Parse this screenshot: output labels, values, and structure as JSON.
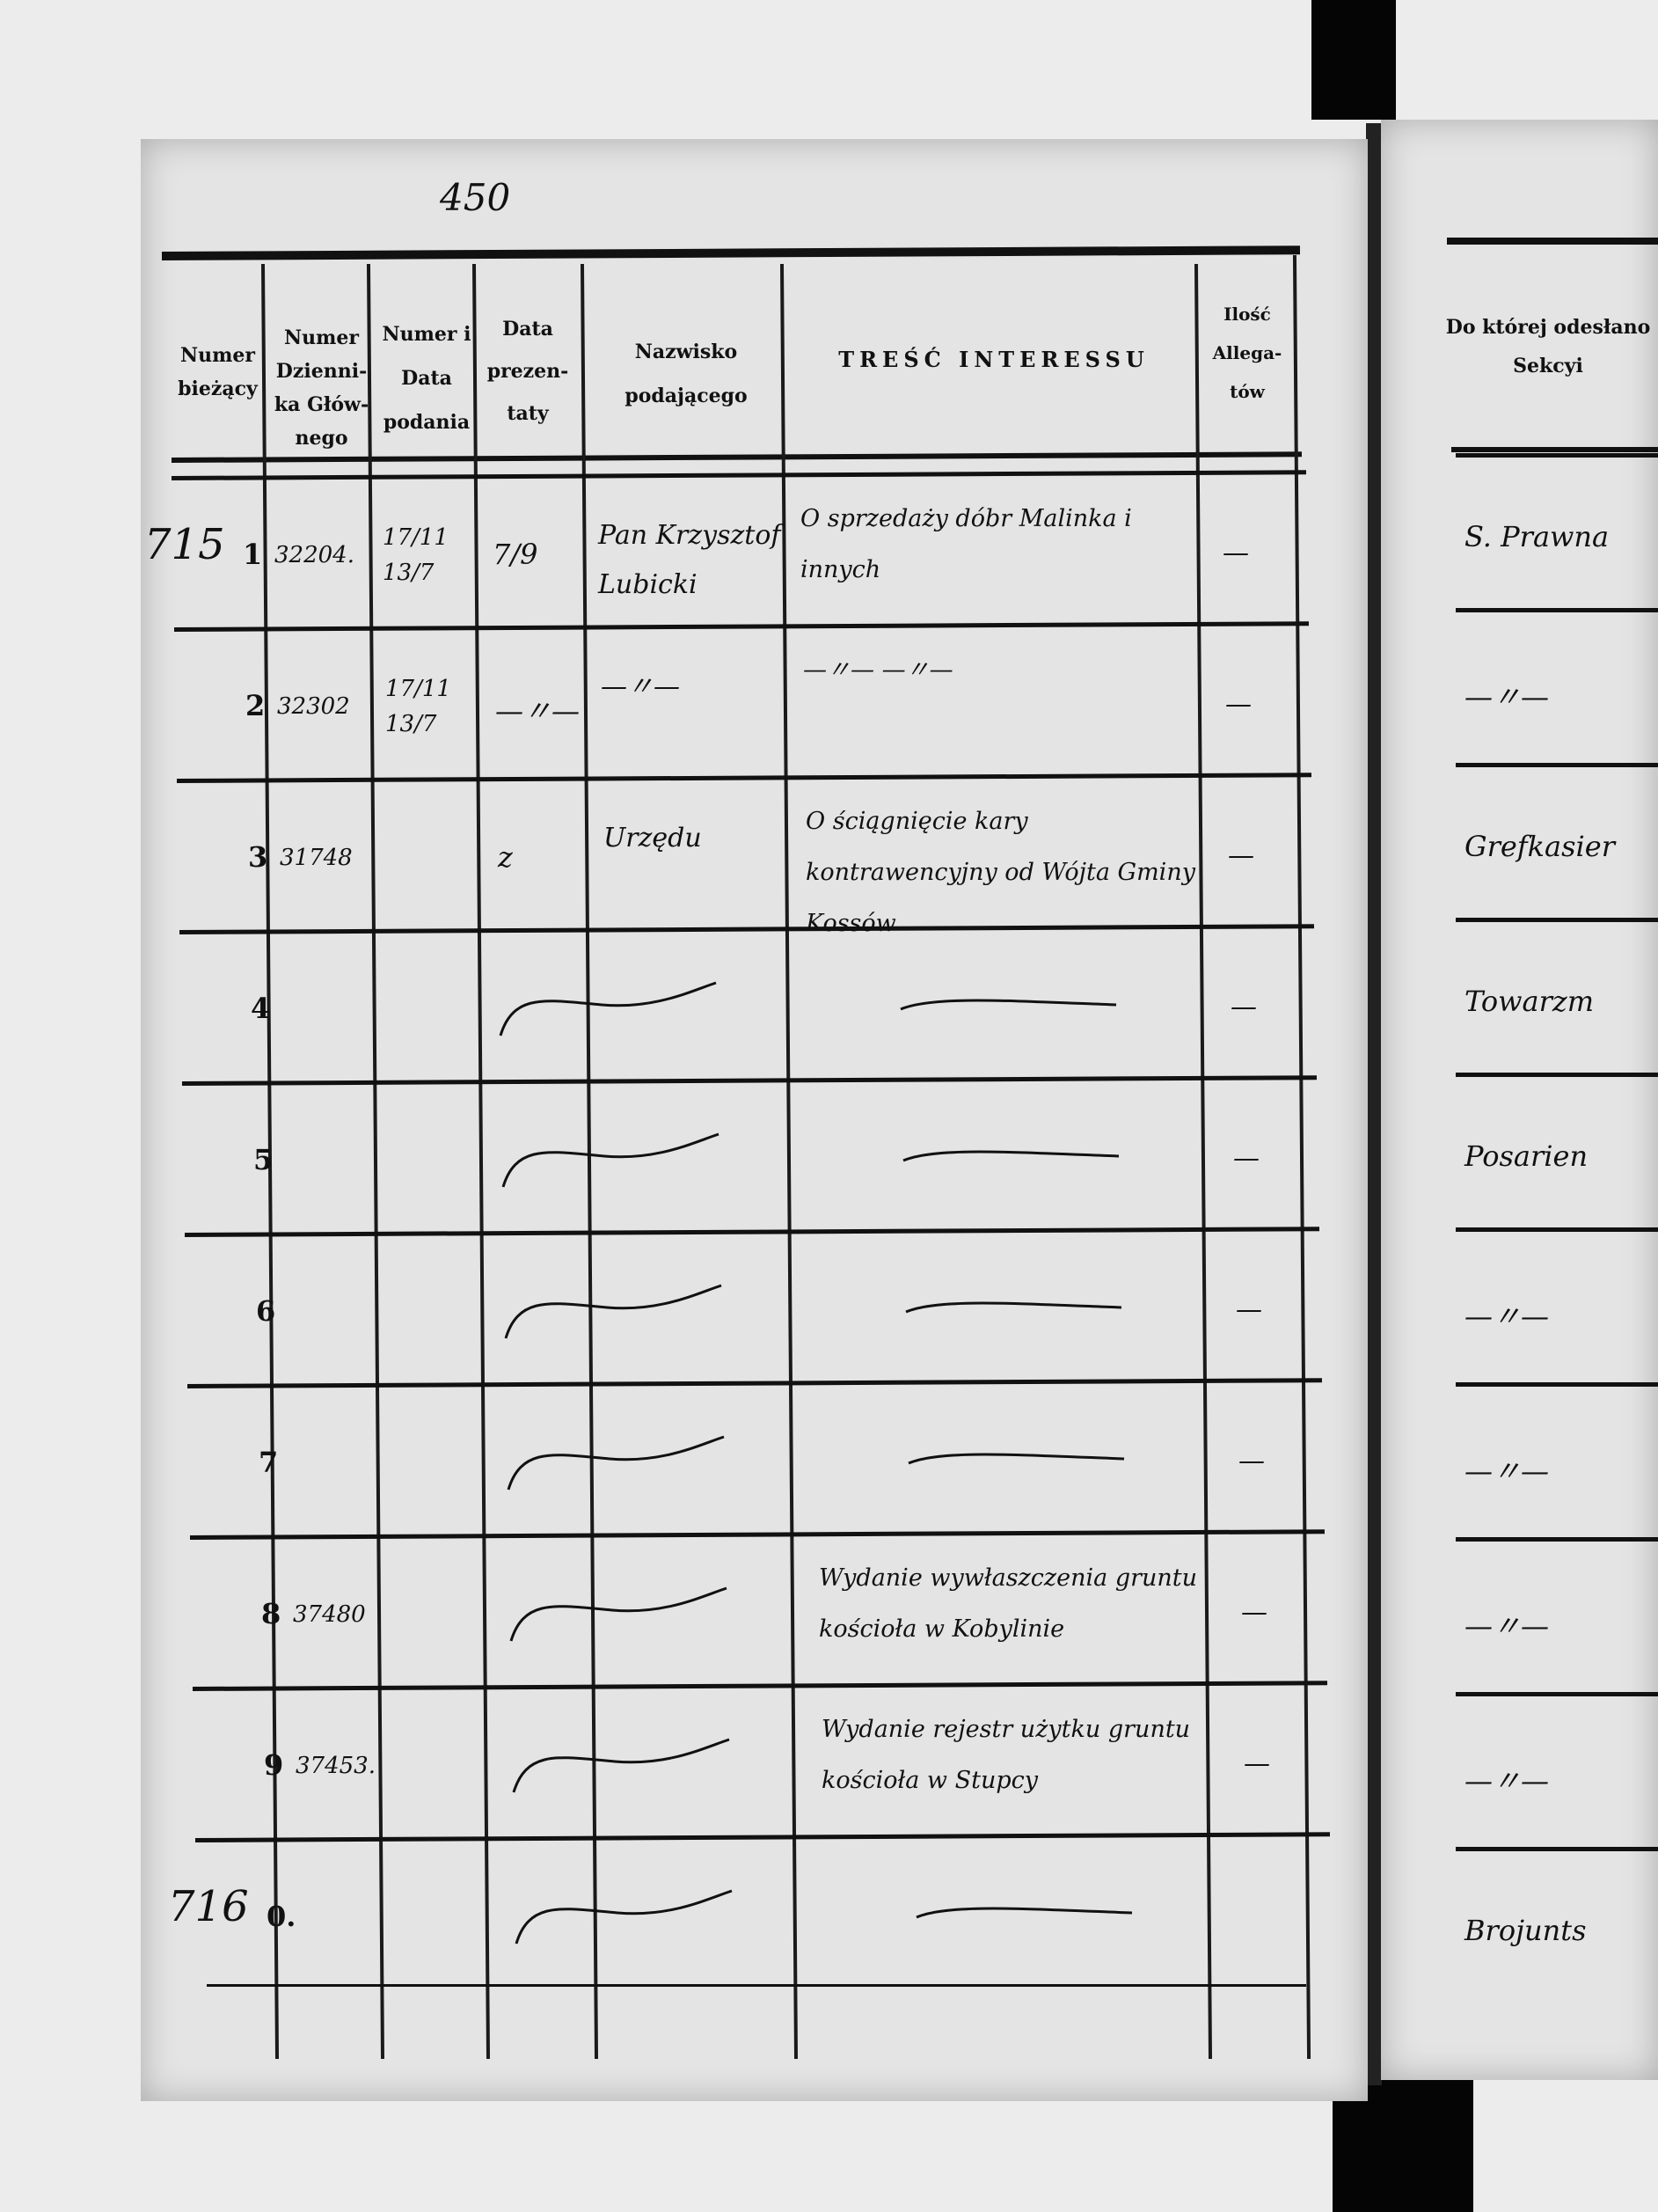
{
  "page_number": "450",
  "header": {
    "col_current_number": "Numer bieżący",
    "col_main_journal_number": "Numer Dzienni-ka Głów-nego",
    "col_number_and_date": "Numer i Data podania",
    "col_date_presented": "Data prezen-taty",
    "col_petitioner": "Nazwisko podającego",
    "col_content": "TREŚĆ INTERESSU",
    "col_attachments": "Ilość Allega-tów",
    "col_section": "Do której odesłano Sekcyi"
  },
  "rows": [
    {
      "margin": "715",
      "number": "1",
      "journal": "32204.",
      "number_date": "17/11 13/7",
      "date_presented": "7/9",
      "petitioner": "Pan Krzysztof Lubicki",
      "content": "O sprzedaży dóbr Malinka i innych",
      "attachments": "—",
      "section": "S. Prawna"
    },
    {
      "margin": "",
      "number": "2",
      "journal": "32302",
      "number_date": "17/11 13/7",
      "date_presented": "—〃—",
      "petitioner": "—〃—",
      "content": "—〃—   —〃—",
      "attachments": "—",
      "section": "—〃—"
    },
    {
      "margin": "",
      "number": "3",
      "journal": "31748",
      "number_date": "",
      "date_presented": "z",
      "petitioner": "Urzędu",
      "content": "O ściągnięcie kary kontrawencyjny od Wójta Gminy Kossów",
      "attachments": "—",
      "section": "Grefkasier"
    },
    {
      "margin": "",
      "number": "4",
      "journal": "",
      "number_date": "",
      "date_presented": "",
      "petitioner": "",
      "content": "",
      "attachments": "—",
      "section": "Towarzm"
    },
    {
      "margin": "",
      "number": "5",
      "journal": "",
      "number_date": "",
      "date_presented": "",
      "petitioner": "",
      "content": "",
      "attachments": "—",
      "section": "Posarien"
    },
    {
      "margin": "",
      "number": "6",
      "journal": "",
      "number_date": "",
      "date_presented": "",
      "petitioner": "",
      "content": "",
      "attachments": "—",
      "section": "—〃—"
    },
    {
      "margin": "",
      "number": "7",
      "journal": "",
      "number_date": "",
      "date_presented": "",
      "petitioner": "",
      "content": "",
      "attachments": "—",
      "section": "—〃—"
    },
    {
      "margin": "",
      "number": "8",
      "journal": "37480",
      "number_date": "",
      "date_presented": "",
      "petitioner": "",
      "content": "Wydanie wywłaszczenia gruntu kościoła w Kobylinie",
      "attachments": "—",
      "section": "—〃—"
    },
    {
      "margin": "",
      "number": "9",
      "journal": "37453.",
      "number_date": "",
      "date_presented": "",
      "petitioner": "",
      "content": "Wydanie rejestr użytku gruntu kościoła w Stupcy",
      "attachments": "—",
      "section": "—〃—"
    },
    {
      "margin": "716",
      "number": "0.",
      "journal": "",
      "number_date": "",
      "date_presented": "",
      "petitioner": "",
      "content": "",
      "attachments": "",
      "section": "Brojunts"
    }
  ]
}
